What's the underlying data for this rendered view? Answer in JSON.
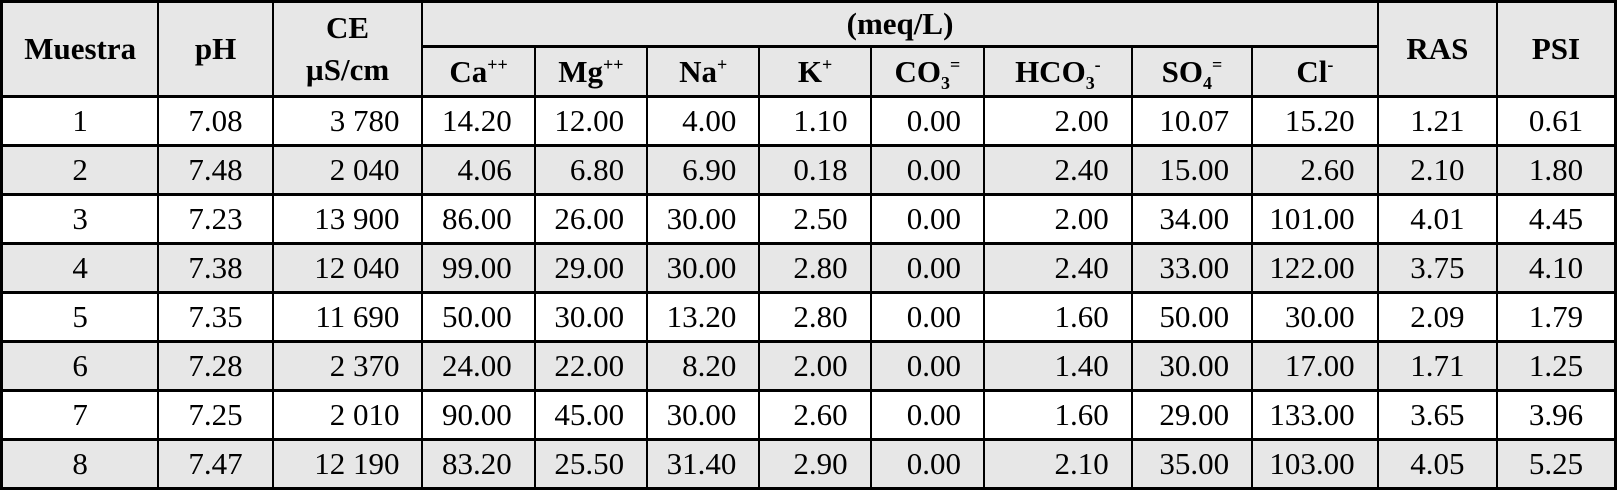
{
  "table": {
    "header": {
      "muestra": "Muestra",
      "ph": "pH",
      "ce_line1": "CE",
      "ce_line2": "µS/cm",
      "meq_group": "(meq/L)",
      "ras": "RAS",
      "psi": "PSI",
      "ions": [
        {
          "name": "ca",
          "base": "Ca",
          "sub": "",
          "sup": "++"
        },
        {
          "name": "mg",
          "base": "Mg",
          "sub": "",
          "sup": "++"
        },
        {
          "name": "na",
          "base": "Na",
          "sub": "",
          "sup": "+"
        },
        {
          "name": "k",
          "base": "K",
          "sub": "",
          "sup": "+"
        },
        {
          "name": "co3",
          "base": "CO",
          "sub": "3",
          "sup": "="
        },
        {
          "name": "hco3",
          "base": "HCO",
          "sub": "3",
          "sup": "-"
        },
        {
          "name": "so4",
          "base": "SO",
          "sub": "4",
          "sup": "="
        },
        {
          "name": "cl",
          "base": "Cl",
          "sub": "",
          "sup": "-"
        }
      ]
    },
    "column_keys": [
      "muestra",
      "ph",
      "ce",
      "ca",
      "mg",
      "na",
      "k",
      "co3",
      "hco3",
      "so4",
      "cl",
      "ras",
      "psi"
    ],
    "rows": [
      [
        "1",
        "7.08",
        "3 780",
        "14.20",
        "12.00",
        "4.00",
        "1.10",
        "0.00",
        "2.00",
        "10.07",
        "15.20",
        "1.21",
        "0.61"
      ],
      [
        "2",
        "7.48",
        "2 040",
        "4.06",
        "6.80",
        "6.90",
        "0.18",
        "0.00",
        "2.40",
        "15.00",
        "2.60",
        "2.10",
        "1.80"
      ],
      [
        "3",
        "7.23",
        "13 900",
        "86.00",
        "26.00",
        "30.00",
        "2.50",
        "0.00",
        "2.00",
        "34.00",
        "101.00",
        "4.01",
        "4.45"
      ],
      [
        "4",
        "7.38",
        "12 040",
        "99.00",
        "29.00",
        "30.00",
        "2.80",
        "0.00",
        "2.40",
        "33.00",
        "122.00",
        "3.75",
        "4.10"
      ],
      [
        "5",
        "7.35",
        "11 690",
        "50.00",
        "30.00",
        "13.20",
        "2.80",
        "0.00",
        "1.60",
        "50.00",
        "30.00",
        "2.09",
        "1.79"
      ],
      [
        "6",
        "7.28",
        "2 370",
        "24.00",
        "22.00",
        "8.20",
        "2.00",
        "0.00",
        "1.40",
        "30.00",
        "17.00",
        "1.71",
        "1.25"
      ],
      [
        "7",
        "7.25",
        "2 010",
        "90.00",
        "45.00",
        "30.00",
        "2.60",
        "0.00",
        "1.60",
        "29.00",
        "133.00",
        "3.65",
        "3.96"
      ],
      [
        "8",
        "7.47",
        "12 190",
        "83.20",
        "25.50",
        "31.40",
        "2.90",
        "0.00",
        "2.10",
        "35.00",
        "103.00",
        "4.05",
        "5.25"
      ]
    ]
  },
  "colors": {
    "stripe": "#e7e7e7",
    "border": "#000000",
    "background": "#ffffff",
    "text": "#000000"
  }
}
